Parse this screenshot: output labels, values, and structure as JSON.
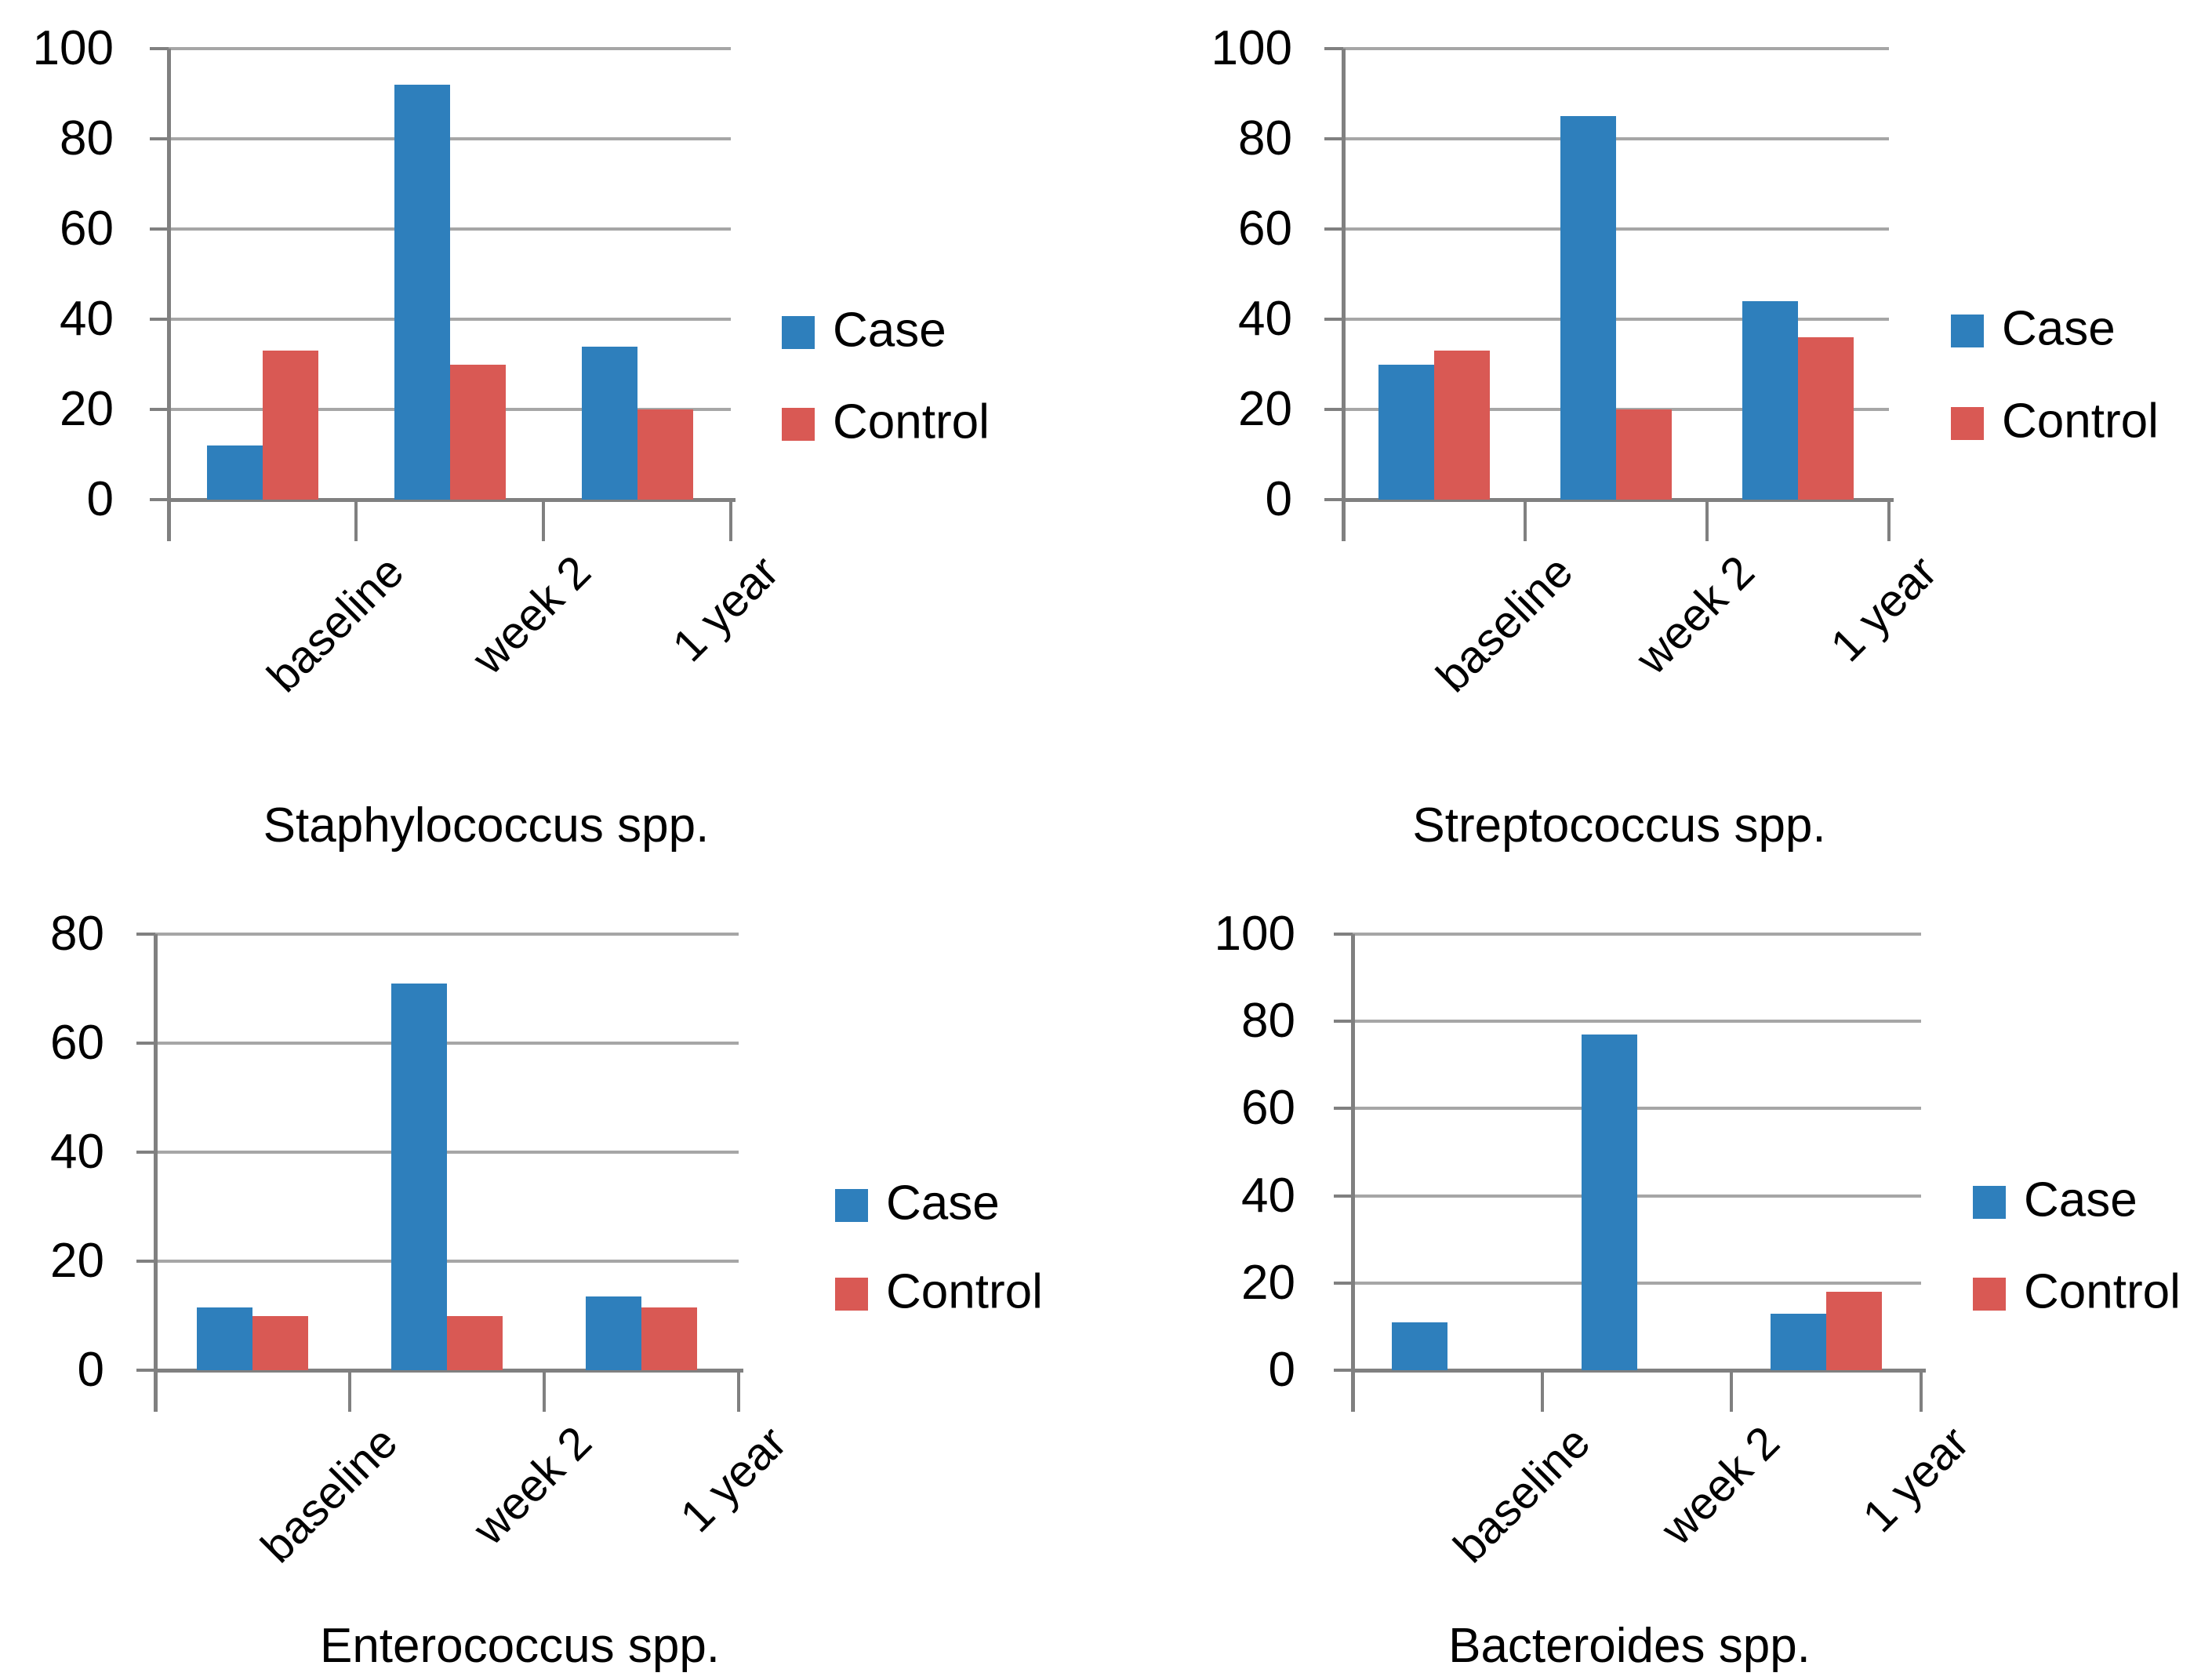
{
  "colors": {
    "case": "#2e7fbc",
    "control": "#d95954",
    "gridline": "#a6a6a6",
    "axis": "#808080",
    "text": "#000000"
  },
  "legend": {
    "case_label": "Case",
    "control_label": "Control"
  },
  "chart_data": [
    {
      "type": "bar",
      "title": "Staphylococcus spp.",
      "categories": [
        "baseline",
        "week 2",
        "1 year"
      ],
      "series": [
        {
          "name": "Case",
          "values": [
            12,
            92,
            34
          ]
        },
        {
          "name": "Control",
          "values": [
            33,
            30,
            20
          ]
        }
      ],
      "ylim": [
        0,
        100
      ],
      "yticks": [
        0,
        20,
        40,
        60,
        80,
        100
      ],
      "grid": true,
      "legend_position": "right"
    },
    {
      "type": "bar",
      "title": "Streptococcus spp.",
      "categories": [
        "baseline",
        "week 2",
        "1 year"
      ],
      "series": [
        {
          "name": "Case",
          "values": [
            30,
            85,
            44
          ]
        },
        {
          "name": "Control",
          "values": [
            33,
            20,
            36
          ]
        }
      ],
      "ylim": [
        0,
        100
      ],
      "yticks": [
        0,
        20,
        40,
        60,
        80,
        100
      ],
      "grid": true,
      "legend_position": "right"
    },
    {
      "type": "bar",
      "title": "Enterococcus spp.",
      "categories": [
        "baseline",
        "week 2",
        "1 year"
      ],
      "series": [
        {
          "name": "Case",
          "values": [
            11.5,
            71,
            13.5
          ]
        },
        {
          "name": "Control",
          "values": [
            10,
            10,
            11.5
          ]
        }
      ],
      "ylim": [
        0,
        80
      ],
      "yticks": [
        0,
        20,
        40,
        60,
        80
      ],
      "grid": true,
      "legend_position": "right"
    },
    {
      "type": "bar",
      "title": "Bacteroides spp.",
      "categories": [
        "baseline",
        "week 2",
        "1 year"
      ],
      "series": [
        {
          "name": "Case",
          "values": [
            11,
            77,
            13
          ]
        },
        {
          "name": "Control",
          "values": [
            0,
            0,
            18
          ]
        }
      ],
      "ylim": [
        0,
        100
      ],
      "yticks": [
        0,
        20,
        40,
        60,
        80,
        100
      ],
      "grid": true,
      "legend_position": "right"
    }
  ]
}
